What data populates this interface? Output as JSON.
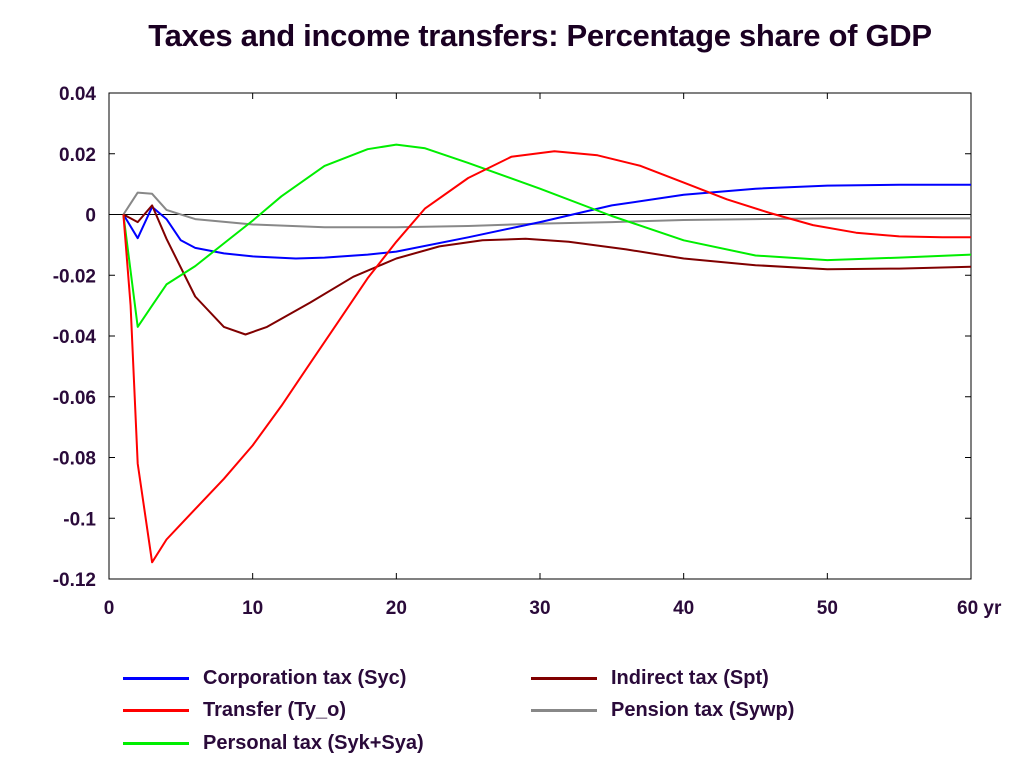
{
  "chart_data": {
    "type": "line",
    "title": "Taxes and income transfers: Percentage share of GDP",
    "x_ticks": [
      "0",
      "10",
      "20",
      "30",
      "40",
      "50",
      "60 yr"
    ],
    "y_ticks": [
      "0.04",
      "0.02",
      "0",
      "-0.02",
      "-0.04",
      "-0.06",
      "-0.08",
      "-0.1",
      "-0.12"
    ],
    "xlim": [
      0,
      60
    ],
    "ylim": [
      -0.12,
      0.04
    ],
    "zero_line": true,
    "series": [
      {
        "name": "Corporation tax (Syc)",
        "color": "#0000ff",
        "points": [
          [
            1,
            0
          ],
          [
            2,
            -0.0078
          ],
          [
            3,
            0.0025
          ],
          [
            4,
            -0.0015
          ],
          [
            5,
            -0.0085
          ],
          [
            6,
            -0.011
          ],
          [
            8,
            -0.0128
          ],
          [
            10,
            -0.0138
          ],
          [
            13,
            -0.0145
          ],
          [
            15,
            -0.0142
          ],
          [
            18,
            -0.0132
          ],
          [
            20,
            -0.0122
          ],
          [
            25,
            -0.0075
          ],
          [
            30,
            -0.0025
          ],
          [
            35,
            0.003
          ],
          [
            40,
            0.0065
          ],
          [
            45,
            0.0085
          ],
          [
            50,
            0.0095
          ],
          [
            55,
            0.0098
          ],
          [
            60,
            0.0098
          ]
        ]
      },
      {
        "name": "Transfer (Ty_o)",
        "color": "#ff0000",
        "points": [
          [
            1,
            0
          ],
          [
            1.5,
            -0.03
          ],
          [
            2,
            -0.082
          ],
          [
            3,
            -0.1145
          ],
          [
            4,
            -0.107
          ],
          [
            5,
            -0.102
          ],
          [
            6,
            -0.097
          ],
          [
            8,
            -0.087
          ],
          [
            10,
            -0.076
          ],
          [
            12,
            -0.063
          ],
          [
            14,
            -0.049
          ],
          [
            16,
            -0.035
          ],
          [
            18,
            -0.021
          ],
          [
            20,
            -0.009
          ],
          [
            22,
            0.002
          ],
          [
            25,
            0.012
          ],
          [
            28,
            0.019
          ],
          [
            31,
            0.0208
          ],
          [
            34,
            0.0195
          ],
          [
            37,
            0.016
          ],
          [
            40,
            0.0105
          ],
          [
            43,
            0.005
          ],
          [
            46,
            0.0005
          ],
          [
            49,
            -0.0035
          ],
          [
            52,
            -0.006
          ],
          [
            55,
            -0.0072
          ],
          [
            58,
            -0.0075
          ],
          [
            60,
            -0.0075
          ]
        ]
      },
      {
        "name": "Personal tax (Syk+Sya)",
        "color": "#00ee00",
        "points": [
          [
            1,
            0
          ],
          [
            2,
            -0.037
          ],
          [
            3,
            -0.03
          ],
          [
            4,
            -0.023
          ],
          [
            6,
            -0.017
          ],
          [
            8,
            -0.0095
          ],
          [
            10,
            -0.002
          ],
          [
            12,
            0.006
          ],
          [
            15,
            0.016
          ],
          [
            18,
            0.0215
          ],
          [
            20,
            0.023
          ],
          [
            22,
            0.0218
          ],
          [
            25,
            0.017
          ],
          [
            30,
            0.0085
          ],
          [
            35,
            -0.0005
          ],
          [
            40,
            -0.0085
          ],
          [
            45,
            -0.0135
          ],
          [
            50,
            -0.015
          ],
          [
            55,
            -0.0142
          ],
          [
            60,
            -0.0132
          ]
        ]
      },
      {
        "name": "Indirect tax (Spt)",
        "color": "#800000",
        "points": [
          [
            1,
            0
          ],
          [
            2,
            -0.0025
          ],
          [
            3,
            0.003
          ],
          [
            4,
            -0.008
          ],
          [
            6,
            -0.027
          ],
          [
            8,
            -0.037
          ],
          [
            9.5,
            -0.0395
          ],
          [
            11,
            -0.037
          ],
          [
            14,
            -0.029
          ],
          [
            17,
            -0.0205
          ],
          [
            20,
            -0.0145
          ],
          [
            23,
            -0.0105
          ],
          [
            26,
            -0.0085
          ],
          [
            29,
            -0.008
          ],
          [
            32,
            -0.009
          ],
          [
            36,
            -0.0115
          ],
          [
            40,
            -0.0145
          ],
          [
            45,
            -0.0167
          ],
          [
            50,
            -0.018
          ],
          [
            55,
            -0.0178
          ],
          [
            60,
            -0.0172
          ]
        ]
      },
      {
        "name": "Pension tax (Sywp)",
        "color": "#888888",
        "points": [
          [
            1,
            0
          ],
          [
            2,
            0.0072
          ],
          [
            3,
            0.0068
          ],
          [
            4,
            0.0015
          ],
          [
            6,
            -0.0015
          ],
          [
            10,
            -0.0033
          ],
          [
            15,
            -0.0042
          ],
          [
            20,
            -0.0042
          ],
          [
            25,
            -0.0038
          ],
          [
            30,
            -0.003
          ],
          [
            35,
            -0.0025
          ],
          [
            40,
            -0.0018
          ],
          [
            45,
            -0.0015
          ],
          [
            50,
            -0.0013
          ],
          [
            55,
            -0.0013
          ],
          [
            60,
            -0.0013
          ]
        ]
      }
    ]
  }
}
